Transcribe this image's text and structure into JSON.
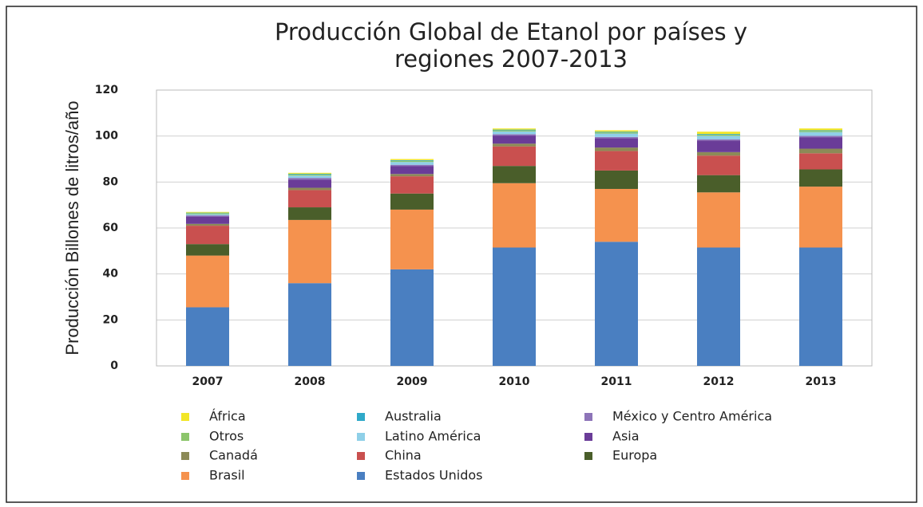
{
  "chart_data": {
    "type": "stacked-bar",
    "title": [
      "Producción Global de Etanol por países y",
      "regiones 2007-2013"
    ],
    "y_label": "Producción Billones de litros/año",
    "categories": [
      "2007",
      "2008",
      "2009",
      "2010",
      "2011",
      "2012",
      "2013"
    ],
    "series": [
      {
        "name": "Estados Unidos",
        "color": "#4a7fc1",
        "values": [
          25.5,
          36,
          42,
          51.5,
          54,
          51.5,
          51.5
        ]
      },
      {
        "name": "Brasil",
        "color": "#f5924e",
        "values": [
          22.5,
          27.5,
          26,
          28,
          23,
          24,
          26.5
        ]
      },
      {
        "name": "Europa",
        "color": "#4a5e2a",
        "values": [
          5,
          5.5,
          7,
          7.5,
          8,
          7.5,
          7.5
        ]
      },
      {
        "name": "China",
        "color": "#c9504f",
        "values": [
          8,
          7.5,
          7.5,
          8.5,
          8.5,
          8.5,
          7
        ]
      },
      {
        "name": "Canadá",
        "color": "#8c8a57",
        "values": [
          0.8,
          1,
          1,
          1.2,
          1.5,
          1.5,
          2
        ]
      },
      {
        "name": "Asia",
        "color": "#6a3c98",
        "values": [
          3.2,
          3.5,
          3.5,
          3.5,
          4,
          5,
          5
        ]
      },
      {
        "name": "México y Centro América",
        "color": "#8d74b8",
        "values": [
          0.5,
          0.8,
          0.5,
          0.6,
          0.6,
          0.6,
          0.6
        ]
      },
      {
        "name": "Latino América",
        "color": "#8fd0e8",
        "values": [
          0.5,
          1,
          1.2,
          1.2,
          1.5,
          1.5,
          1.6
        ]
      },
      {
        "name": "Otros",
        "color": "#8cc56b",
        "values": [
          0.5,
          0.5,
          0.5,
          0.5,
          0.5,
          0.5,
          0.5
        ]
      },
      {
        "name": "Australia",
        "color": "#2fa9c9",
        "values": [
          0.2,
          0.3,
          0.3,
          0.3,
          0.3,
          0.3,
          0.3
        ]
      },
      {
        "name": "África",
        "color": "#f2e627",
        "values": [
          0.3,
          0.4,
          0.5,
          0.5,
          0.6,
          1,
          0.8
        ]
      }
    ],
    "ylim": [
      0,
      120
    ],
    "yticks": [
      0,
      20,
      40,
      60,
      80,
      100,
      120
    ],
    "grid": true
  }
}
